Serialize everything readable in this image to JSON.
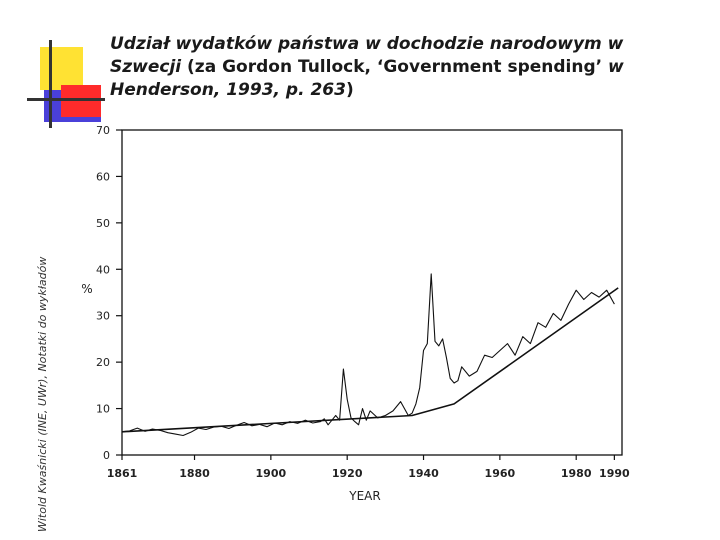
{
  "title": {
    "part1": "Udział wydatków państwa w dochodzie narodowym w",
    "part2": "Szwecji",
    "part3": " (za Gordon Tullock, ‘Government spending’ ",
    "part4": " w Henderson, 1993, p. 263",
    "part5": ")"
  },
  "side_note": "Witold Kwaśnicki (INE, UWr), Notatki do wykładów",
  "colors": {
    "line": "#111111",
    "yellow": "#ffe233",
    "red": "#ff2b2b",
    "blue": "#4a40d9"
  },
  "chart_data": {
    "type": "line",
    "title": "",
    "xlabel": "YEAR",
    "ylabel": "%",
    "xlim": [
      1861,
      1992
    ],
    "ylim": [
      0,
      70
    ],
    "grid": false,
    "x_ticks": [
      1861,
      1880,
      1900,
      1920,
      1940,
      1960,
      1980,
      1990
    ],
    "y_ticks": [
      0,
      10,
      20,
      30,
      40,
      50,
      60,
      70
    ],
    "series": [
      {
        "x": [
          1861,
          1863,
          1865,
          1867,
          1869,
          1871,
          1873,
          1875,
          1877,
          1879,
          1881,
          1883,
          1885,
          1887,
          1889,
          1891,
          1893,
          1895,
          1897,
          1899,
          1901,
          1903,
          1905,
          1907,
          1909,
          1911,
          1913,
          1914,
          1915,
          1916,
          1917,
          1918,
          1919,
          1920,
          1921,
          1922,
          1923,
          1924,
          1925,
          1926,
          1928,
          1930,
          1932,
          1934,
          1936,
          1937,
          1938,
          1939,
          1940,
          1941,
          1942,
          1943,
          1944,
          1945,
          1946,
          1947,
          1948,
          1949,
          1950,
          1952,
          1954,
          1956,
          1958,
          1960,
          1962,
          1964,
          1966,
          1968,
          1970,
          1972,
          1974,
          1976,
          1978,
          1980,
          1982,
          1984,
          1986,
          1988,
          1990
        ],
        "y": [
          5.0,
          5.2,
          5.8,
          5.1,
          5.6,
          5.3,
          4.8,
          4.5,
          4.2,
          4.9,
          5.8,
          5.5,
          6.0,
          6.2,
          5.7,
          6.4,
          7.0,
          6.3,
          6.6,
          6.1,
          6.9,
          6.5,
          7.2,
          6.8,
          7.5,
          6.9,
          7.2,
          7.8,
          6.5,
          7.5,
          8.5,
          7.5,
          18.5,
          12.0,
          8.0,
          7.2,
          6.5,
          10.0,
          7.5,
          9.5,
          8.0,
          8.5,
          9.5,
          11.5,
          8.5,
          9.0,
          11.0,
          14.5,
          22.5,
          24.0,
          39.0,
          24.5,
          23.5,
          25.0,
          21.0,
          16.5,
          15.5,
          16.0,
          19.0,
          17.0,
          18.0,
          21.5,
          21.0,
          22.5,
          24.0,
          21.5,
          25.5,
          24.0,
          28.5,
          27.5,
          30.5,
          29.0,
          32.5,
          35.5,
          33.5,
          35.0,
          34.0,
          35.5,
          32.5
        ]
      },
      {
        "x": [
          1861,
          1937,
          1948,
          1991
        ],
        "y": [
          5.0,
          8.5,
          11.0,
          36.0
        ]
      }
    ]
  }
}
